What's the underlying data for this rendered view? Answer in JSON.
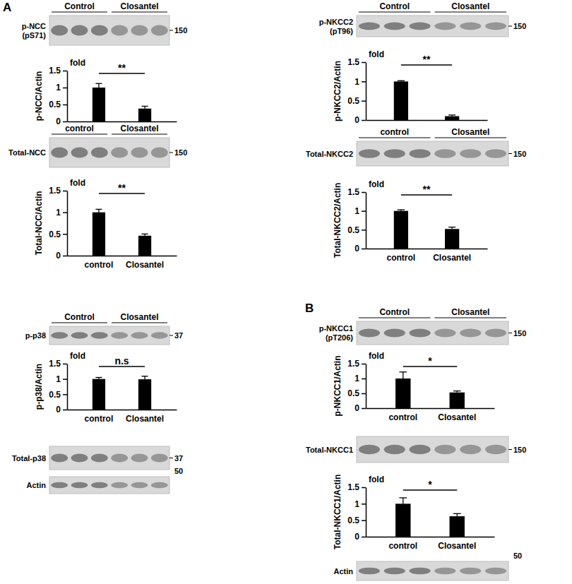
{
  "chart_data": [
    {
      "type": "bar",
      "y_label": "p-NCC/Actin",
      "unit_text": "fold",
      "categories": [
        null,
        null
      ],
      "values": [
        1,
        0.38
      ],
      "errors": [
        0.12,
        0.07
      ],
      "color": "#000000",
      "ylim": [
        0,
        1.5
      ],
      "yticks": [
        0,
        0.5,
        1,
        1.5
      ],
      "significance": "**"
    },
    {
      "type": "bar",
      "y_label": "Total-NCC/Actin",
      "unit_text": "fold",
      "categories": [
        "control",
        "Closantel"
      ],
      "values": [
        1,
        0.46
      ],
      "errors": [
        0.07,
        0.04
      ],
      "color": "#000000",
      "ylim": [
        0,
        1.5
      ],
      "yticks": [
        0,
        0.5,
        1,
        1.5
      ],
      "significance": "**"
    },
    {
      "type": "bar",
      "y_label": "p-p38/Actin",
      "unit_text": "fold",
      "categories": [
        "control",
        "Closantel"
      ],
      "values": [
        1,
        0.99
      ],
      "errors": [
        0.05,
        0.1
      ],
      "color": "#000000",
      "ylim": [
        0,
        1.5
      ],
      "yticks": [
        0,
        0.5,
        1,
        1.5
      ],
      "significance": "n.s"
    },
    {
      "type": "bar",
      "y_label": "p-NKCC2/Actin",
      "unit_text": "fold",
      "categories": [
        null,
        null
      ],
      "values": [
        1,
        0.1
      ],
      "errors": [
        0.02,
        0.03
      ],
      "color": "#000000",
      "ylim": [
        0,
        1.5
      ],
      "yticks": [
        0,
        0.5,
        1,
        1.5
      ],
      "significance": "**"
    },
    {
      "type": "bar",
      "y_label": "Total-NKCC2/Actin",
      "unit_text": "fold",
      "categories": [
        "control",
        "Closantel"
      ],
      "values": [
        1,
        0.52
      ],
      "errors": [
        0.03,
        0.05
      ],
      "color": "#000000",
      "ylim": [
        0,
        1.5
      ],
      "yticks": [
        0,
        0.5,
        1,
        1.5
      ],
      "significance": "**"
    },
    {
      "type": "bar",
      "y_label": "p-NKCC1/Actin",
      "unit_text": "fold",
      "categories": [
        "control",
        "Closantel"
      ],
      "values": [
        1,
        0.53
      ],
      "errors": [
        0.22,
        0.05
      ],
      "color": "#000000",
      "ylim": [
        0,
        1.5
      ],
      "yticks": [
        0,
        0.5,
        1,
        1.5
      ],
      "significance": "*"
    },
    {
      "type": "bar",
      "y_label": "Total-NKCC1/Actin",
      "unit_text": "fold",
      "categories": [
        "control",
        "Closantel"
      ],
      "values": [
        1,
        0.62
      ],
      "errors": [
        0.18,
        0.08
      ],
      "color": "#000000",
      "ylim": [
        0,
        1.5
      ],
      "yticks": [
        0,
        0.5,
        1,
        1.5
      ],
      "significance": "*"
    }
  ],
  "panels": [
    "A",
    "B"
  ],
  "blots": [
    {
      "label": [
        "p-NCC",
        "(pS71)"
      ],
      "groups": [
        "Control",
        "Closantel"
      ],
      "size": 150
    },
    {
      "label": [
        "Total-NCC"
      ],
      "groups": [
        "control",
        "Closantel"
      ],
      "size": 150
    },
    {
      "label": [
        "p-p38"
      ],
      "groups": [
        "Control",
        "Closantel"
      ],
      "size": 37
    },
    {
      "label": [
        "Total-p38"
      ],
      "groups": [],
      "size": 37
    },
    {
      "label": [
        "Actin"
      ],
      "groups": [],
      "size": 50
    },
    {
      "label": [
        "p-NKCC2",
        "(pT96)"
      ],
      "groups": [
        "Control",
        "Closantel"
      ],
      "size": 150
    },
    {
      "label": [
        "Total-NKCC2"
      ],
      "groups": [
        "control",
        "Closantel"
      ],
      "size": 150
    },
    {
      "label": [
        "p-NKCC1",
        "(pT206)"
      ],
      "groups": [
        "Control",
        "Closantel"
      ],
      "size": 150
    },
    {
      "label": [
        "Total-NKCC1"
      ],
      "groups": [],
      "size": 150
    },
    {
      "label": [
        "Actin"
      ],
      "groups": [],
      "size": 50
    }
  ]
}
